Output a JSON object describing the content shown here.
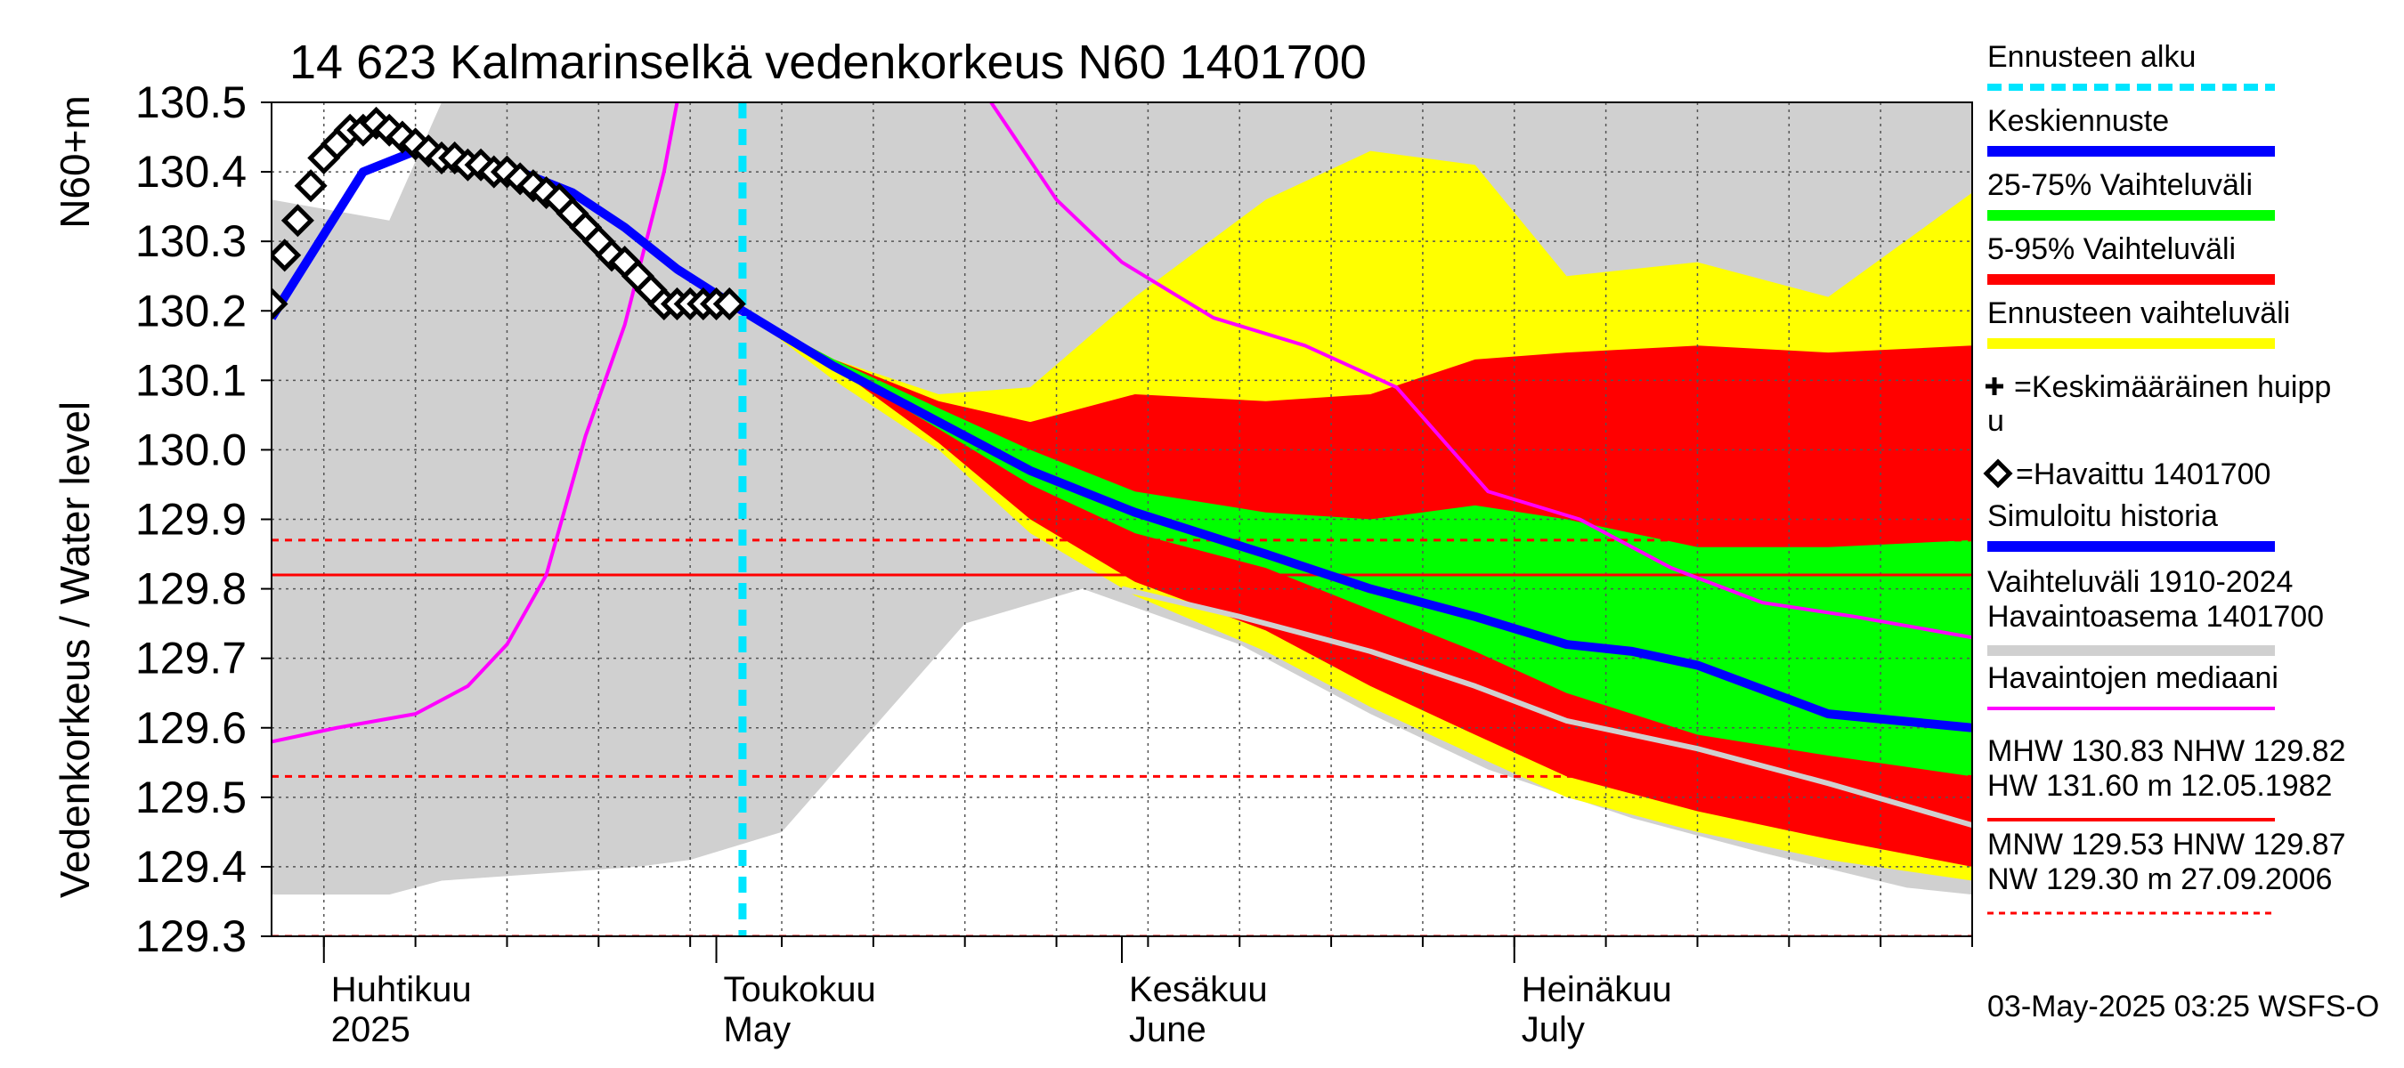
{
  "chart_data": {
    "type": "area",
    "title": "14 623 Kalmarinselkä vedenkorkeus N60 1401700",
    "ylabel": "Vedenkorkeus / Water level",
    "ylabel_unit": "N60+m",
    "ylim": [
      129.3,
      130.5
    ],
    "yticks": [
      "130.5",
      "130.4",
      "130.3",
      "130.2",
      "130.1",
      "130.0",
      "129.9",
      "129.8",
      "129.7",
      "129.6",
      "129.5",
      "129.4",
      "129.3"
    ],
    "xlim": [
      "2025-03-28",
      "2025-08-05"
    ],
    "month_labels": [
      {
        "fi": "Huhtikuu",
        "en": "2025",
        "date": "2025-04-01"
      },
      {
        "fi": "Toukokuu",
        "en": "May",
        "date": "2025-05-01"
      },
      {
        "fi": "Kesäkuu",
        "en": "June",
        "date": "2025-06-01"
      },
      {
        "fi": "Heinäkuu",
        "en": "July",
        "date": "2025-07-01"
      }
    ],
    "forecast_start": "2025-05-03",
    "grid": true,
    "reference_lines": [
      {
        "name": "MHW",
        "value": 130.83,
        "color": "#ff0000",
        "style": "dashed"
      },
      {
        "name": "NHW",
        "value": 129.82,
        "color": "#ff0000",
        "style": "solid"
      },
      {
        "name": "HNW",
        "value": 129.87,
        "color": "#ff0000",
        "style": "dashed"
      },
      {
        "name": "MNW",
        "value": 129.53,
        "color": "#ff0000",
        "style": "dashed"
      },
      {
        "name": "NW",
        "value": 129.3,
        "color": "#ff0000",
        "style": "dashed"
      }
    ],
    "series": [
      {
        "name": "Vaihteluväli 1910-2024 Havaintoasema 1401700",
        "kind": "band",
        "color": "#d0d0d0",
        "x": [
          "2025-03-28",
          "2025-04-06",
          "2025-04-10",
          "2025-04-25",
          "2025-04-29",
          "2025-05-06",
          "2025-05-20",
          "2025-05-29",
          "2025-06-10",
          "2025-06-20",
          "2025-06-29",
          "2025-07-10",
          "2025-07-20",
          "2025-07-31",
          "2025-08-05"
        ],
        "lower": [
          129.36,
          129.36,
          129.38,
          129.4,
          129.41,
          129.45,
          129.75,
          129.8,
          129.72,
          129.62,
          129.54,
          129.47,
          129.42,
          129.37,
          129.36
        ],
        "upper": [
          130.36,
          130.33,
          130.5,
          130.5,
          130.5,
          130.5,
          130.5,
          130.5,
          130.5,
          130.5,
          130.5,
          130.5,
          130.5,
          130.5,
          130.5
        ]
      },
      {
        "name": "Ennusteen vaihteluväli",
        "kind": "band",
        "color": "#ffff00",
        "x": [
          "2025-05-03",
          "2025-05-10",
          "2025-05-18",
          "2025-05-25",
          "2025-06-02",
          "2025-06-12",
          "2025-06-20",
          "2025-06-28",
          "2025-07-05",
          "2025-07-15",
          "2025-07-25",
          "2025-08-05"
        ],
        "lower": [
          130.2,
          130.1,
          130.0,
          129.88,
          129.79,
          129.71,
          129.63,
          129.56,
          129.5,
          129.45,
          129.41,
          129.38
        ],
        "upper": [
          130.2,
          130.13,
          130.08,
          130.09,
          130.22,
          130.36,
          130.43,
          130.41,
          130.25,
          130.27,
          130.22,
          130.37
        ]
      },
      {
        "name": "5-95% Vaihteluväli",
        "kind": "band",
        "color": "#ff0000",
        "x": [
          "2025-05-03",
          "2025-05-10",
          "2025-05-18",
          "2025-05-25",
          "2025-06-02",
          "2025-06-12",
          "2025-06-20",
          "2025-06-28",
          "2025-07-05",
          "2025-07-15",
          "2025-07-25",
          "2025-08-05"
        ],
        "lower": [
          130.2,
          130.12,
          130.01,
          129.9,
          129.81,
          129.74,
          129.66,
          129.59,
          129.53,
          129.48,
          129.44,
          129.4
        ],
        "upper": [
          130.2,
          130.13,
          130.07,
          130.04,
          130.08,
          130.07,
          130.08,
          130.13,
          130.14,
          130.15,
          130.14,
          130.15
        ]
      },
      {
        "name": "25-75% Vaihteluväli",
        "kind": "band",
        "color": "#00ff00",
        "x": [
          "2025-05-03",
          "2025-05-10",
          "2025-05-18",
          "2025-05-25",
          "2025-06-02",
          "2025-06-12",
          "2025-06-20",
          "2025-06-28",
          "2025-07-05",
          "2025-07-15",
          "2025-07-25",
          "2025-08-05"
        ],
        "lower": [
          130.2,
          130.12,
          130.03,
          129.95,
          129.88,
          129.83,
          129.77,
          129.71,
          129.65,
          129.59,
          129.56,
          129.53
        ],
        "upper": [
          130.2,
          130.13,
          130.06,
          130.0,
          129.94,
          129.91,
          129.9,
          129.92,
          129.9,
          129.86,
          129.86,
          129.87
        ]
      },
      {
        "name": "Havaintojen mediaani",
        "kind": "line",
        "color": "#ff00ff",
        "x": [
          "2025-03-28",
          "2025-04-02",
          "2025-04-08",
          "2025-04-12",
          "2025-04-15",
          "2025-04-18",
          "2025-04-21",
          "2025-04-24",
          "2025-04-27",
          "2025-04-28"
        ],
        "y": [
          129.58,
          129.6,
          129.62,
          129.66,
          129.72,
          129.82,
          130.02,
          130.18,
          130.4,
          130.5
        ],
        "x2": [
          "2025-05-22",
          "2025-05-27",
          "2025-06-01",
          "2025-06-08",
          "2025-06-15",
          "2025-06-22",
          "2025-06-29",
          "2025-07-06",
          "2025-07-13",
          "2025-07-20",
          "2025-07-27",
          "2025-08-05"
        ],
        "y2": [
          130.5,
          130.36,
          130.27,
          130.19,
          130.15,
          130.09,
          129.94,
          129.9,
          129.83,
          129.78,
          129.76,
          129.73
        ]
      },
      {
        "name": "Simuloitu historia",
        "kind": "line",
        "color": "#0000ff",
        "x": [
          "2025-03-28",
          "2025-04-01",
          "2025-04-04",
          "2025-04-08",
          "2025-04-12",
          "2025-04-16",
          "2025-04-20",
          "2025-04-24",
          "2025-04-28",
          "2025-05-03"
        ],
        "y": [
          130.19,
          130.31,
          130.4,
          130.43,
          130.42,
          130.4,
          130.37,
          130.32,
          130.26,
          130.2
        ]
      },
      {
        "name": "Keskiennuste",
        "kind": "line",
        "color": "#0000ff",
        "x": [
          "2025-05-03",
          "2025-05-10",
          "2025-05-18",
          "2025-05-25",
          "2025-06-02",
          "2025-06-12",
          "2025-06-20",
          "2025-06-28",
          "2025-07-05",
          "2025-07-10",
          "2025-07-15",
          "2025-07-25",
          "2025-08-05"
        ],
        "y": [
          130.2,
          130.12,
          130.04,
          129.97,
          129.91,
          129.85,
          129.8,
          129.76,
          129.72,
          129.71,
          129.69,
          129.62,
          129.6
        ]
      },
      {
        "name": "Havaintojen simulointi",
        "kind": "line",
        "color": "#d0d0d0",
        "x": [
          "2025-06-01",
          "2025-06-10",
          "2025-06-20",
          "2025-06-28",
          "2025-07-05",
          "2025-07-15",
          "2025-07-25",
          "2025-08-05"
        ],
        "y": [
          129.8,
          129.76,
          129.71,
          129.66,
          129.61,
          129.57,
          129.52,
          129.46
        ]
      },
      {
        "name": "Havaittu 1401700",
        "kind": "scatter",
        "marker": "diamond",
        "color": "#000000",
        "x": [
          "2025-03-28",
          "2025-03-29",
          "2025-03-30",
          "2025-03-31",
          "2025-04-01",
          "2025-04-02",
          "2025-04-03",
          "2025-04-04",
          "2025-04-05",
          "2025-04-06",
          "2025-04-07",
          "2025-04-08",
          "2025-04-09",
          "2025-04-10",
          "2025-04-11",
          "2025-04-12",
          "2025-04-13",
          "2025-04-14",
          "2025-04-15",
          "2025-04-16",
          "2025-04-17",
          "2025-04-18",
          "2025-04-19",
          "2025-04-20",
          "2025-04-21",
          "2025-04-22",
          "2025-04-23",
          "2025-04-24",
          "2025-04-25",
          "2025-04-26",
          "2025-04-27",
          "2025-04-28",
          "2025-04-29",
          "2025-04-30",
          "2025-05-01",
          "2025-05-02"
        ],
        "y": [
          130.21,
          130.28,
          130.33,
          130.38,
          130.42,
          130.44,
          130.46,
          130.46,
          130.47,
          130.46,
          130.45,
          130.44,
          130.43,
          130.42,
          130.42,
          130.41,
          130.41,
          130.4,
          130.4,
          130.39,
          130.38,
          130.37,
          130.36,
          130.34,
          130.32,
          130.3,
          130.28,
          130.27,
          130.25,
          130.23,
          130.21,
          130.21,
          130.21,
          130.21,
          130.21,
          130.21
        ]
      }
    ]
  },
  "legend": [
    {
      "label": "Ennusteen alku",
      "kind": "dash",
      "color": "#00e5ff"
    },
    {
      "label": "Keskiennuste",
      "kind": "bar",
      "color": "#0000ff"
    },
    {
      "label": "25-75% Vaihteluväli",
      "kind": "bar",
      "color": "#00ff00"
    },
    {
      "label": "5-95% Vaihteluväli",
      "kind": "bar",
      "color": "#ff0000"
    },
    {
      "label": "Ennusteen vaihteluväli",
      "kind": "bar",
      "color": "#ffff00"
    },
    {
      "label": "=Keskimääräinen huipp",
      "label2": "u",
      "kind": "plus",
      "color": "#000000"
    },
    {
      "label": "=Havaittu 1401700",
      "kind": "diamond",
      "color": "#000000"
    },
    {
      "label": "Simuloitu historia",
      "kind": "bar",
      "color": "#0000ff"
    },
    {
      "label": "Vaihteluväli 1910-2024",
      "label2": " Havaintoasema 1401700",
      "kind": "bar",
      "color": "#d0d0d0"
    },
    {
      "label": "Havaintojen mediaani",
      "kind": "thin",
      "color": "#ff00ff"
    },
    {
      "label": "MHW 130.83 NHW 129.82",
      "label2": "HW 131.60 m 12.05.1982",
      "kind": "thin",
      "color": "#ff0000"
    },
    {
      "label": "MNW 129.53 HNW 129.87",
      "label2": "NW 129.30 m 27.09.2006",
      "kind": "dashed",
      "color": "#ff0000"
    }
  ],
  "footer": "03-May-2025 03:25 WSFS-O"
}
